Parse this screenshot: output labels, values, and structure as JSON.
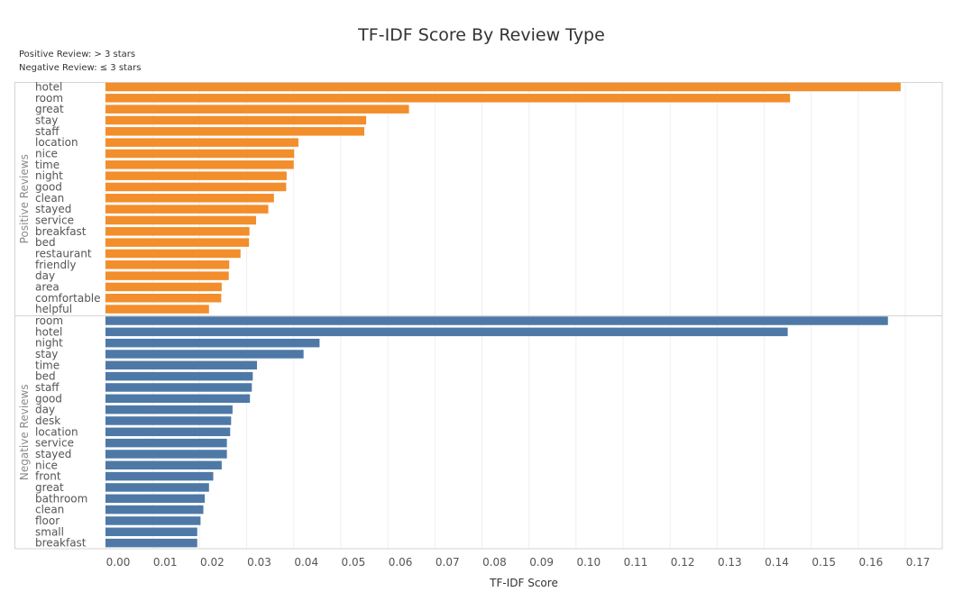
{
  "chart_data": {
    "type": "bar",
    "orientation": "horizontal",
    "title": "TF-IDF Score By Review Type",
    "notes": [
      "Positive Review: > 3 stars",
      "Negative Review: ≤ 3 stars"
    ],
    "xlabel": "TF-IDF Score",
    "xlim": [
      0,
      0.17
    ],
    "xticks": [
      "0.00",
      "0.01",
      "0.02",
      "0.03",
      "0.04",
      "0.05",
      "0.06",
      "0.07",
      "0.08",
      "0.09",
      "0.10",
      "0.11",
      "0.12",
      "0.13",
      "0.14",
      "0.15",
      "0.16",
      "0.17"
    ],
    "panels": [
      {
        "name": "Positive Reviews",
        "color": "#f28e2b",
        "categories": [
          "hotel",
          "room",
          "great",
          "stay",
          "staff",
          "location",
          "nice",
          "time",
          "night",
          "good",
          "clean",
          "stayed",
          "service",
          "breakfast",
          "bed",
          "restaurant",
          "friendly",
          "day",
          "area",
          "comfortable",
          "helpful"
        ],
        "values": [
          0.169,
          0.1455,
          0.0645,
          0.0554,
          0.055,
          0.041,
          0.0401,
          0.04,
          0.0385,
          0.0384,
          0.0358,
          0.0346,
          0.032,
          0.0306,
          0.0305,
          0.0287,
          0.0263,
          0.0262,
          0.0247,
          0.0246,
          0.022
        ]
      },
      {
        "name": "Negative Reviews",
        "color": "#4e79a7",
        "categories": [
          "room",
          "hotel",
          "night",
          "stay",
          "time",
          "bed",
          "staff",
          "good",
          "day",
          "desk",
          "location",
          "service",
          "stayed",
          "nice",
          "front",
          "great",
          "bathroom",
          "clean",
          "floor",
          "small",
          "breakfast"
        ],
        "values": [
          0.1663,
          0.145,
          0.0455,
          0.0421,
          0.0322,
          0.0313,
          0.0311,
          0.0307,
          0.027,
          0.0267,
          0.0265,
          0.0258,
          0.0258,
          0.0247,
          0.0229,
          0.022,
          0.0211,
          0.0208,
          0.0202,
          0.0195,
          0.0195
        ]
      }
    ]
  }
}
